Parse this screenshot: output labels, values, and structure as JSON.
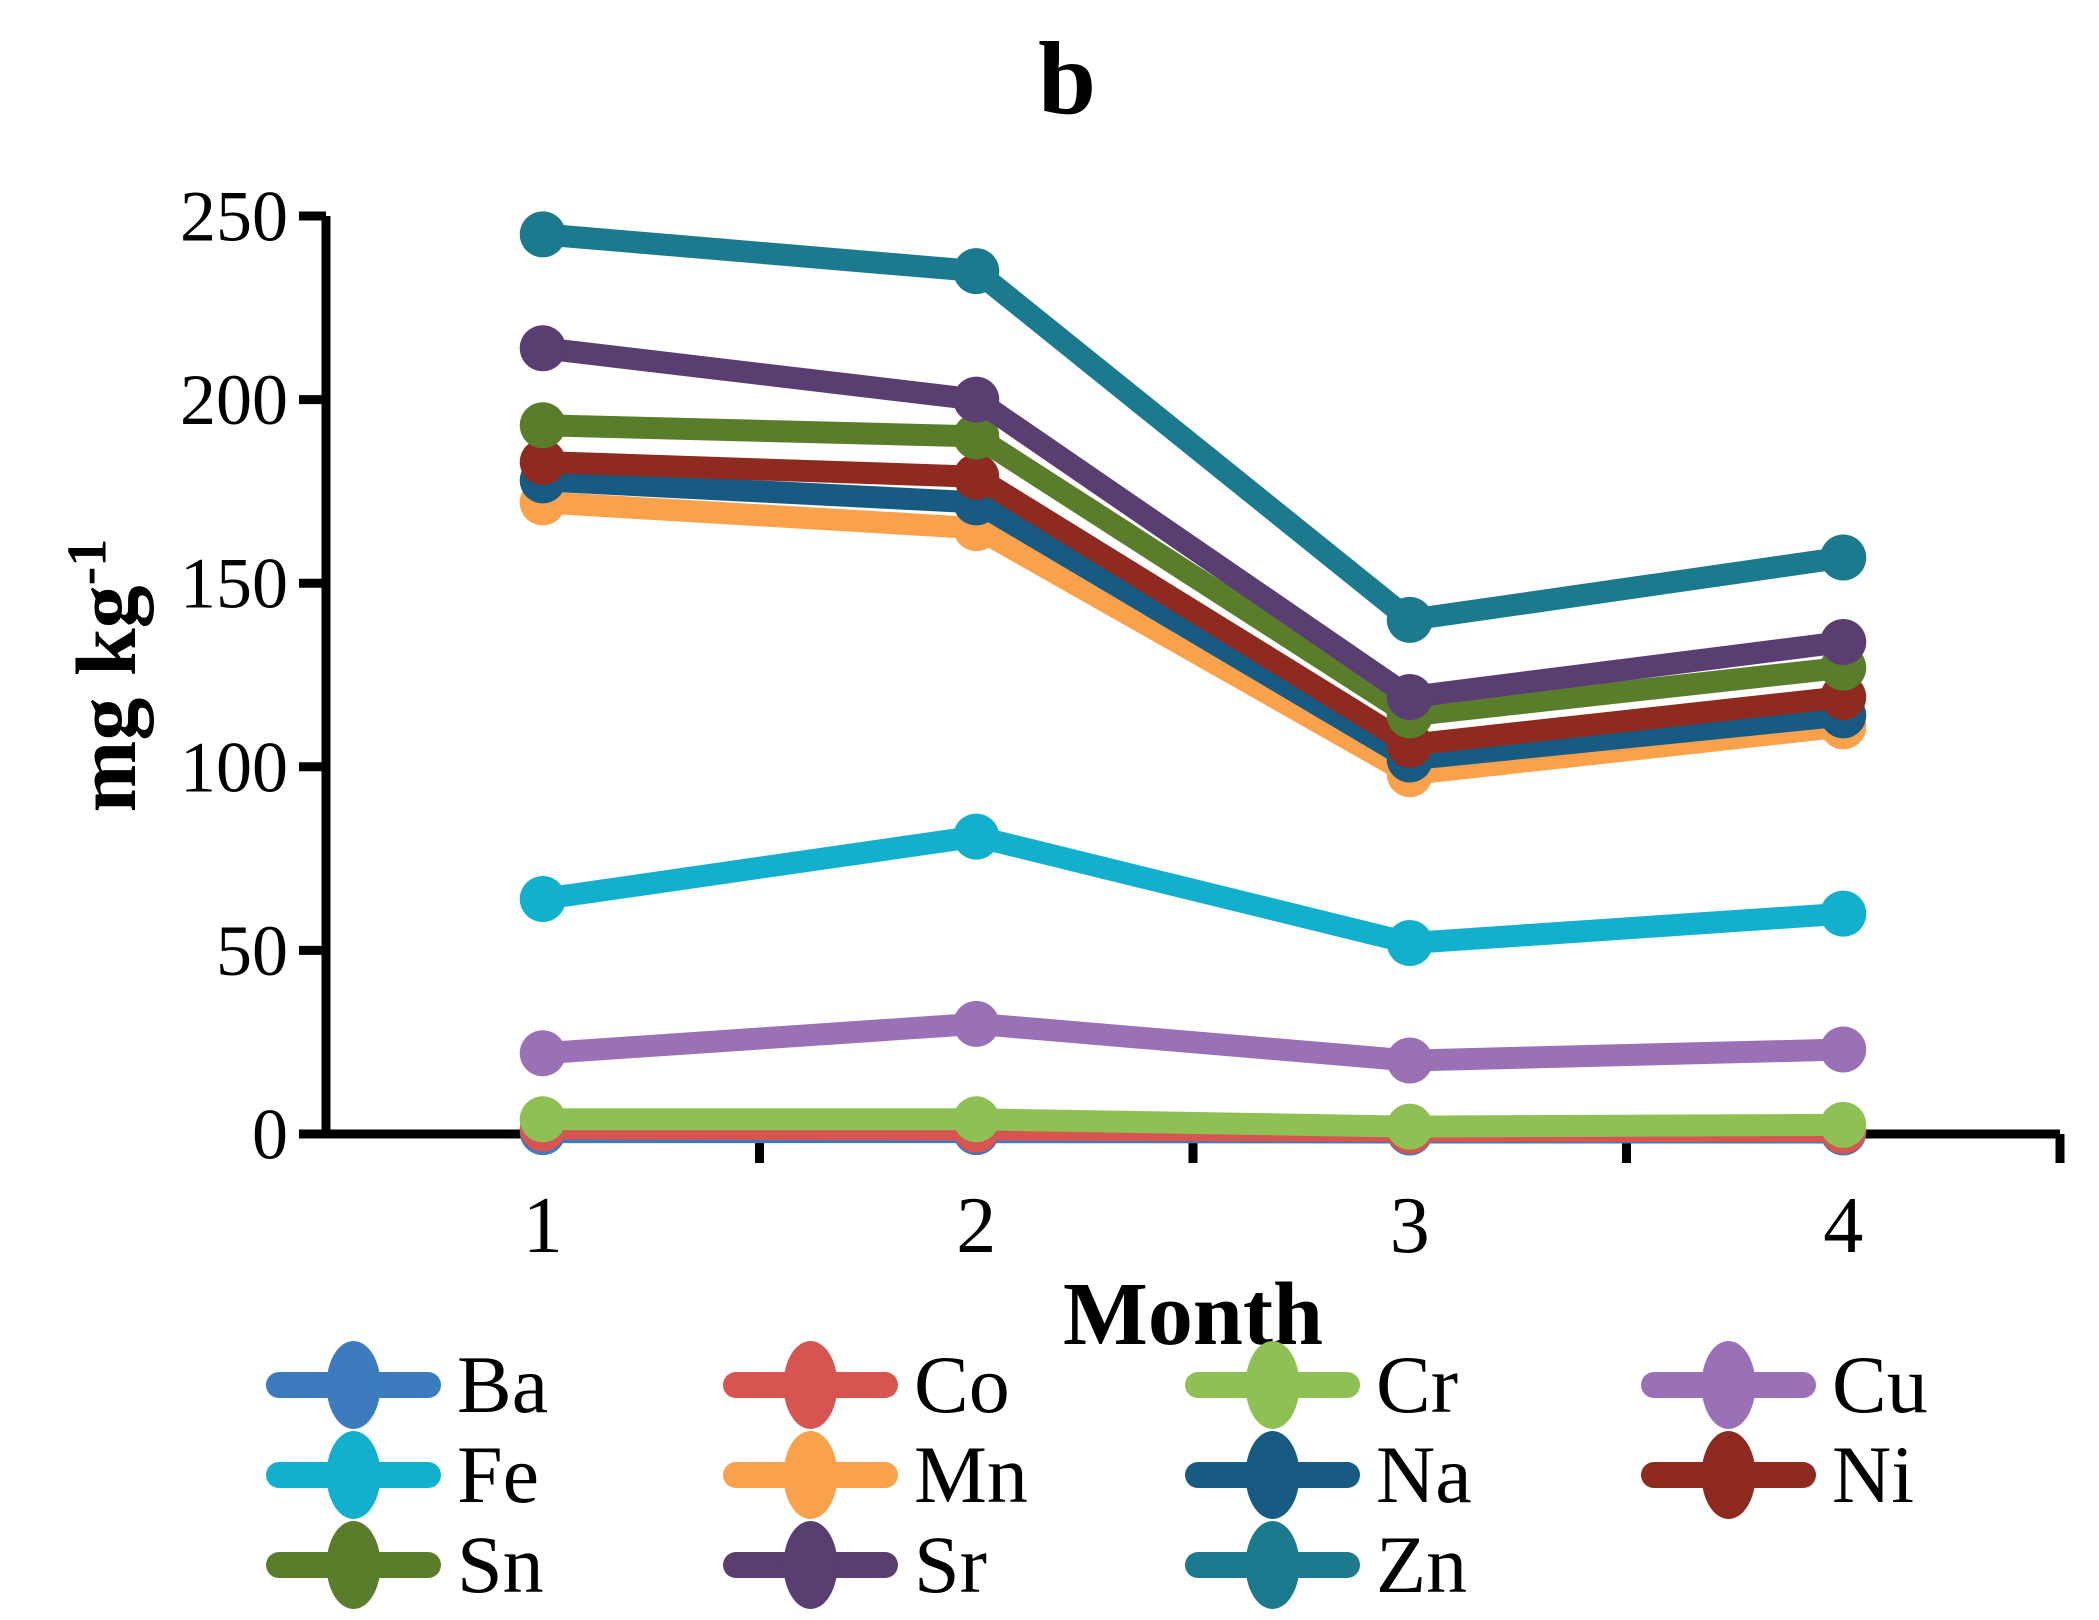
{
  "chart_data": {
    "type": "line",
    "title": "b",
    "xlabel": "Month",
    "ylabel_base": "mg kg",
    "ylabel_sup": "-1",
    "categories": [
      "1",
      "2",
      "3",
      "4"
    ],
    "yticks": [
      0,
      50,
      100,
      150,
      200,
      250
    ],
    "ylim": [
      0,
      250
    ],
    "grid": false,
    "legend_position": "bottom",
    "axis_color": "#000000",
    "series": [
      {
        "name": "Ba",
        "color": "#3B7BBE",
        "values": [
          0.5,
          0.5,
          0.4,
          0.4
        ]
      },
      {
        "name": "Co",
        "color": "#D85450",
        "values": [
          1.5,
          1.2,
          0.8,
          0.8
        ]
      },
      {
        "name": "Cr",
        "color": "#8EC054",
        "values": [
          4,
          4,
          2,
          2.5
        ]
      },
      {
        "name": "Cu",
        "color": "#9A70B6",
        "values": [
          22,
          30,
          20,
          23
        ]
      },
      {
        "name": "Fe",
        "color": "#12B0CD",
        "values": [
          64,
          81,
          52,
          60
        ]
      },
      {
        "name": "Mn",
        "color": "#FAA24B",
        "values": [
          172,
          165,
          98,
          111
        ]
      },
      {
        "name": "Na",
        "color": "#175A82",
        "values": [
          178,
          172,
          102,
          114
        ]
      },
      {
        "name": "Ni",
        "color": "#8F2A20",
        "values": [
          183,
          179,
          106,
          119
        ]
      },
      {
        "name": "Sn",
        "color": "#5A7D2C",
        "values": [
          193,
          190,
          114,
          127
        ]
      },
      {
        "name": "Sr",
        "color": "#5A3D71",
        "values": [
          214,
          200,
          119,
          134
        ]
      },
      {
        "name": "Zn",
        "color": "#1B7A8D",
        "values": [
          245,
          235,
          140,
          157
        ]
      }
    ]
  }
}
